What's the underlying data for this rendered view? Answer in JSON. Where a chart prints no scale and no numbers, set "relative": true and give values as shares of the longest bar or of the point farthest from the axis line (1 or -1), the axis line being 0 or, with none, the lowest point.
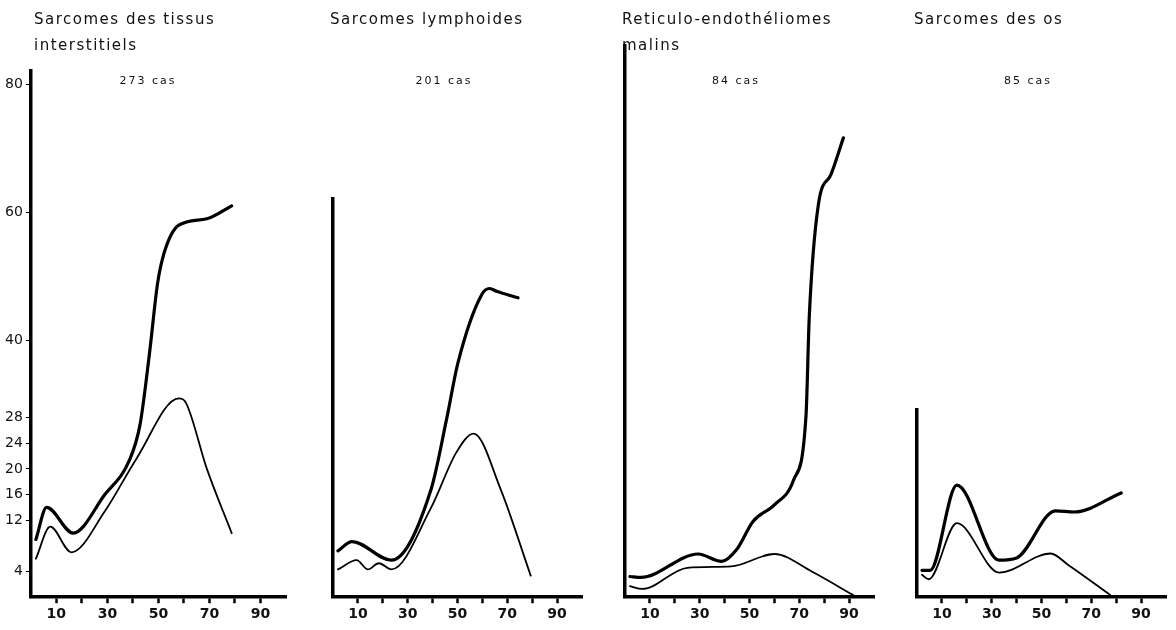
{
  "chart_data": [
    {
      "type": "line",
      "title": "Sarcomes des tissus interstitiels",
      "subtitle": "273 cas",
      "xlim": [
        0,
        100
      ],
      "ylim": [
        0,
        82
      ],
      "xticks": [
        10,
        {
          "value": 20,
          "label": null
        },
        30,
        {
          "value": 40,
          "label": null
        },
        50,
        {
          "value": 60,
          "label": null
        },
        70,
        {
          "value": 80,
          "label": null
        },
        90
      ],
      "yticks": [
        4,
        12,
        16,
        20,
        24,
        28,
        40,
        60,
        80
      ],
      "grid": false,
      "legend": false,
      "marker": "none",
      "series": [
        {
          "color": "#000000",
          "x": [
            2,
            6.2,
            16.6,
            29,
            38.7,
            42.8,
            46.5,
            49.7,
            52.5,
            58,
            69,
            78.7
          ],
          "values": [
            9,
            14,
            10,
            16,
            21.4,
            26.9,
            38,
            49,
            54,
            58,
            59,
            61
          ]
        },
        {
          "color": "#000000",
          "x": [
            2,
            7.6,
            15.9,
            29,
            41.4,
            58,
            60.8,
            69,
            78.7
          ],
          "values": [
            6,
            11,
            7,
            13.4,
            21.6,
            31,
            30.3,
            20,
            10
          ]
        }
      ]
    },
    {
      "type": "line",
      "title": "Sarcomes lymphoides",
      "subtitle": "201 cas",
      "xlim": [
        0,
        100
      ],
      "relative": true,
      "tick_labels": "x",
      "xticks": [
        10,
        {
          "value": 20,
          "label": null
        },
        30,
        {
          "value": 40,
          "label": null
        },
        50,
        {
          "value": 60,
          "label": null
        },
        70,
        {
          "value": 80,
          "label": null
        },
        90
      ],
      "grid": false,
      "legend": false,
      "marker": "none",
      "series": [
        {
          "color": "#000000",
          "x": [
            2,
            7.6,
            23.5,
            39.4,
            45.7,
            50.2,
            59.7,
            62.9,
            66,
            74.3
          ],
          "values": [
            0.15,
            0.18,
            0.12,
            0.35,
            0.58,
            0.76,
            0.98,
            1,
            0.99,
            0.97
          ]
        },
        {
          "color": "#000000",
          "x": [
            2,
            9.5,
            14,
            18.4,
            23.5,
            39.4,
            49.6,
            56.5,
            67.3,
            79.4
          ],
          "values": [
            0.09,
            0.12,
            0.09,
            0.11,
            0.09,
            0.29,
            0.47,
            0.53,
            0.35,
            0.07
          ]
        }
      ]
    },
    {
      "type": "line",
      "title": "Reticulo-endothéliomes malins",
      "subtitle": "84 cas",
      "xlim": [
        0,
        100
      ],
      "relative": true,
      "tick_labels": "x",
      "xticks": [
        10,
        {
          "value": 20,
          "label": null
        },
        30,
        {
          "value": 40,
          "label": null
        },
        50,
        {
          "value": 60,
          "label": null
        },
        70,
        {
          "value": 80,
          "label": null
        },
        90
      ],
      "grid": false,
      "legend": false,
      "marker": "none",
      "series": [
        {
          "color": "#000000",
          "x": [
            2,
            6.3,
            29.4,
            38.8,
            45,
            51.4,
            60,
            67.7,
            72.7,
            74,
            77.7,
            82.7,
            87.7
          ],
          "values": [
            0.045,
            0.043,
            0.094,
            0.078,
            0.105,
            0.165,
            0.201,
            0.255,
            0.396,
            0.61,
            0.856,
            0.92,
            1
          ]
        },
        {
          "color": "#000000",
          "x": [
            2,
            6.9,
            25,
            42.6,
            60,
            75,
            91.5
          ],
          "values": [
            0.024,
            0.018,
            0.064,
            0.067,
            0.094,
            0.056,
            0.005
          ]
        }
      ]
    },
    {
      "type": "line",
      "title": "Sarcomes des os",
      "subtitle": "85 cas",
      "xlim": [
        0,
        100
      ],
      "relative": true,
      "tick_labels": "x",
      "xticks": [
        10,
        {
          "value": 20,
          "label": null
        },
        30,
        {
          "value": 40,
          "label": null
        },
        50,
        {
          "value": 60,
          "label": null
        },
        70,
        {
          "value": 80,
          "label": null
        },
        90
      ],
      "grid": false,
      "legend": false,
      "marker": "none",
      "series": [
        {
          "color": "#000000",
          "x": [
            2,
            5.3,
            16,
            33,
            40,
            55.6,
            63.2,
            82
          ],
          "values": [
            0.24,
            0.24,
            1,
            0.33,
            0.35,
            0.77,
            0.76,
            0.93
          ]
        },
        {
          "color": "#000000",
          "x": [
            2,
            4.7,
            16,
            33,
            53.7,
            60.6,
            77.6
          ],
          "values": [
            0.2,
            0.16,
            0.66,
            0.22,
            0.39,
            0.29,
            0.02
          ]
        }
      ]
    }
  ]
}
